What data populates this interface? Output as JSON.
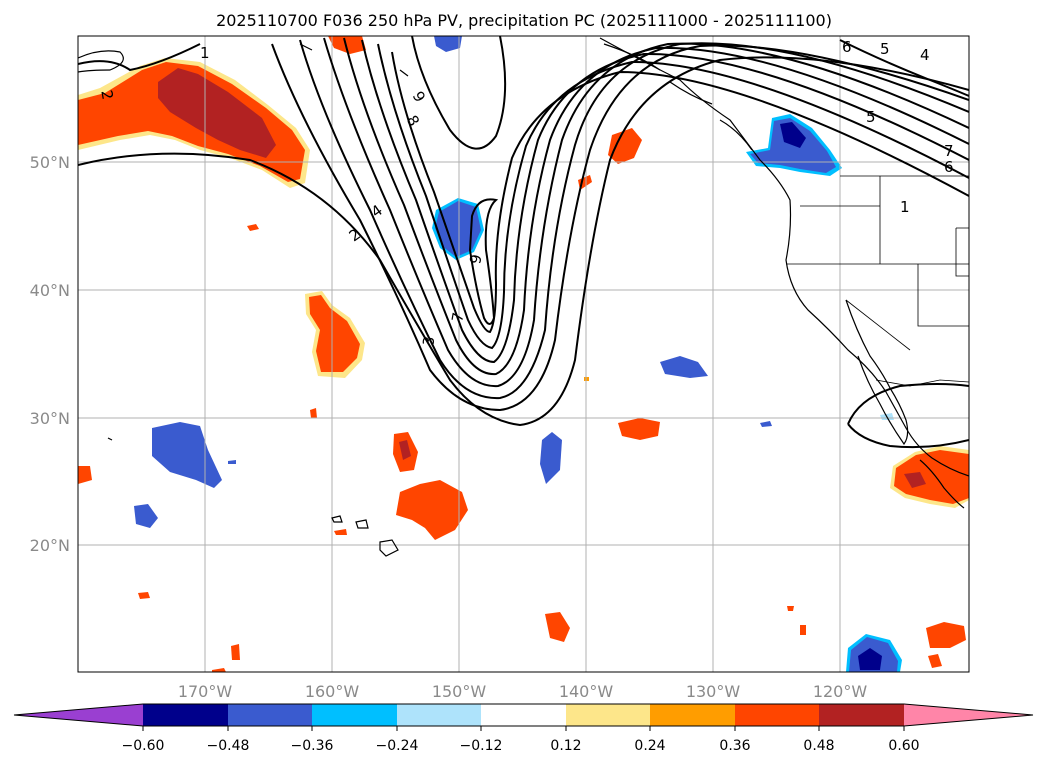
{
  "title": "2025110700 F036 250 hPa PV, precipitation PC (2025111000 - 2025111100)",
  "lat_labels": [
    "50°N",
    "40°N",
    "30°N",
    "20°N"
  ],
  "lon_labels": [
    "170°W",
    "160°W",
    "150°W",
    "140°W",
    "130°W",
    "120°W"
  ],
  "contour_labels": [
    "1",
    "2",
    "3",
    "4",
    "5",
    "6",
    "7",
    "8",
    "9"
  ],
  "colorbar": {
    "ticks": [
      "−0.60",
      "−0.48",
      "−0.36",
      "−0.24",
      "−0.12",
      "0.12",
      "0.24",
      "0.36",
      "0.48",
      "0.60"
    ],
    "colors": [
      "#9a3fd1",
      "#00008b",
      "#3a5bcf",
      "#00bfff",
      "#aee3fb",
      "#ffffff",
      "#fde68a",
      "#ff9d00",
      "#ff4500",
      "#b22222",
      "#ff85a8"
    ]
  }
}
